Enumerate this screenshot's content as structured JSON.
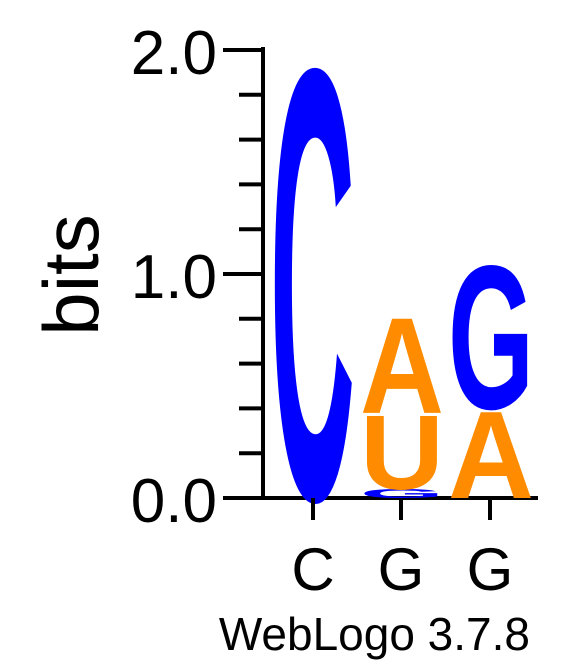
{
  "chart_data": {
    "type": "sequence-logo",
    "ylabel": "bits",
    "ylim": [
      0,
      2.0
    ],
    "y_ticks": [
      "0.0",
      "1.0",
      "2.0"
    ],
    "minor_ticks": [
      0.2,
      0.4,
      0.6,
      0.8,
      1.2,
      1.4,
      1.6,
      1.8
    ],
    "positions": [
      "C",
      "G",
      "G"
    ],
    "stacks": [
      {
        "letters": [
          {
            "char": "C",
            "bits": 1.98
          }
        ]
      },
      {
        "letters": [
          {
            "char": "G",
            "bits": 0.04
          },
          {
            "char": "U",
            "bits": 0.34
          },
          {
            "char": "A",
            "bits": 0.44
          }
        ]
      },
      {
        "letters": [
          {
            "char": "A",
            "bits": 0.4
          },
          {
            "char": "G",
            "bits": 0.66
          }
        ]
      }
    ],
    "colors": {
      "C": "#0000ff",
      "G": "#0000ff",
      "A": "#ff8c00",
      "U": "#ff8c00"
    },
    "footer": "WebLogo 3.7.8"
  }
}
